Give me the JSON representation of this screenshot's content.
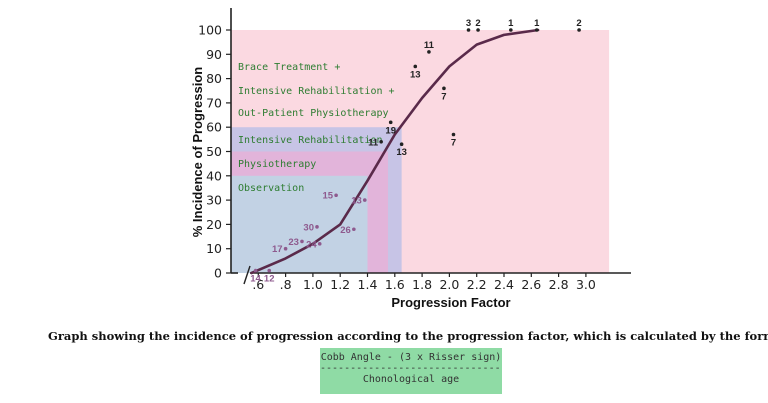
{
  "chart_data": {
    "type": "scatter",
    "xlabel": "Progression Factor",
    "ylabel": "% Incidence of Progression",
    "x_ticks": [
      ".6",
      ".8",
      "1.0",
      "1.2",
      "1.4",
      "1.6",
      "1.8",
      "2.0",
      "2.2",
      "2.4",
      "2.6",
      "2.8",
      "3.0"
    ],
    "y_ticks": [
      "0",
      "10",
      "20",
      "30",
      "40",
      "50",
      "60",
      "70",
      "80",
      "90",
      "100"
    ],
    "xlim": [
      0.4,
      3.2
    ],
    "ylim": [
      0,
      100
    ],
    "grid": false,
    "bands": [
      {
        "label": "Brace Treatment +",
        "x_end": 3.17,
        "y_top": 100,
        "color": "#fbd9e1"
      },
      {
        "label": "Intensive Rehabilitation  +",
        "x_end": null,
        "y_top": null,
        "color": null
      },
      {
        "label": "Out-Patient Physiotherapy",
        "x_end": null,
        "y_top": null,
        "color": null
      },
      {
        "label": "Intensive Rehabilitation",
        "x_end": 1.65,
        "y_top": 60,
        "color": "#c7c4e6"
      },
      {
        "label": "Physiotherapy",
        "x_end": 1.55,
        "y_top": 50,
        "color": "#e2b4da"
      },
      {
        "label": "Observation",
        "x_end": 1.4,
        "y_top": 40,
        "color": "#c2d2e4"
      }
    ],
    "curve": [
      {
        "x": 0.55,
        "y": 0
      },
      {
        "x": 0.8,
        "y": 6
      },
      {
        "x": 1.0,
        "y": 12
      },
      {
        "x": 1.2,
        "y": 20
      },
      {
        "x": 1.4,
        "y": 38
      },
      {
        "x": 1.6,
        "y": 57
      },
      {
        "x": 1.8,
        "y": 72
      },
      {
        "x": 2.0,
        "y": 85
      },
      {
        "x": 2.2,
        "y": 94
      },
      {
        "x": 2.4,
        "y": 98
      },
      {
        "x": 2.65,
        "y": 100
      }
    ],
    "points": [
      {
        "x": 0.58,
        "y": 1,
        "label": "14"
      },
      {
        "x": 0.68,
        "y": 1,
        "label": "12"
      },
      {
        "x": 0.92,
        "y": 13,
        "label": "23"
      },
      {
        "x": 0.8,
        "y": 10,
        "label": "17"
      },
      {
        "x": 1.03,
        "y": 19,
        "label": "30"
      },
      {
        "x": 1.05,
        "y": 12,
        "label": "24"
      },
      {
        "x": 1.17,
        "y": 32,
        "label": "15"
      },
      {
        "x": 1.3,
        "y": 18,
        "label": "26"
      },
      {
        "x": 1.38,
        "y": 30,
        "label": "13"
      },
      {
        "x": 1.5,
        "y": 54,
        "label": "11"
      },
      {
        "x": 1.57,
        "y": 62,
        "label": "19"
      },
      {
        "x": 1.65,
        "y": 53,
        "label": "13"
      },
      {
        "x": 1.75,
        "y": 85,
        "label": "13"
      },
      {
        "x": 1.85,
        "y": 91,
        "label": "11"
      },
      {
        "x": 1.96,
        "y": 76,
        "label": "7"
      },
      {
        "x": 2.03,
        "y": 57,
        "label": "7"
      },
      {
        "x": 2.14,
        "y": 100,
        "label": "3"
      },
      {
        "x": 2.21,
        "y": 100,
        "label": "2"
      },
      {
        "x": 2.45,
        "y": 100,
        "label": "1"
      },
      {
        "x": 2.64,
        "y": 100,
        "label": "1"
      },
      {
        "x": 2.95,
        "y": 100,
        "label": "2"
      }
    ],
    "colors": {
      "point_purple": "#8e5a8e",
      "point_black": "#222222",
      "curve": "#5a2a4a",
      "band_text": "#2e7d32"
    }
  },
  "caption": "Graph showing the incidence of progression according to the progression factor, which is calculated by the formula:",
  "formula": {
    "numerator": "Cobb Angle - (3 x Risser sign)",
    "divider": "---------------------------------",
    "denominator": "Chonological age"
  }
}
